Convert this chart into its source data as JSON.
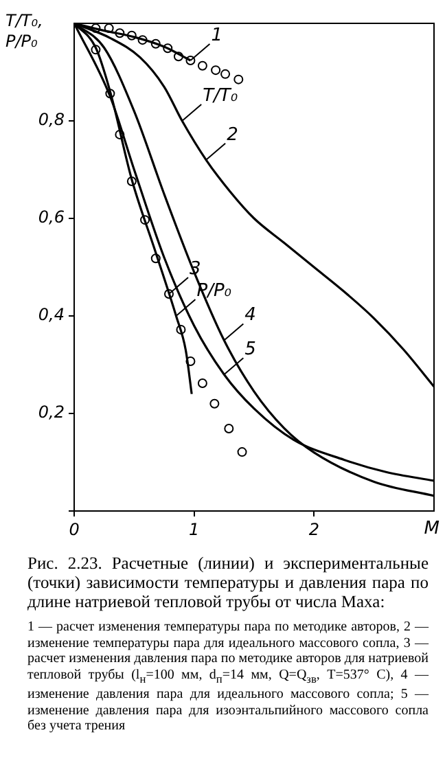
{
  "chart_data": {
    "type": "line",
    "title": "Рис. 2.23. Расчетные (линии) и экспериментальные (точки) зависимости температуры и давления пара по длине натриевой тепловой трубы от числа Маха:",
    "xlabel": "M",
    "ylabel": "T/T₀, P/P₀",
    "xlim": [
      0,
      3
    ],
    "xticks": [
      0,
      1,
      2
    ],
    "ylim": [
      0,
      1
    ],
    "yticks": [
      {
        "value": 0,
        "label": null
      },
      {
        "value": 0.2,
        "label": "0,2"
      },
      {
        "value": 0.4,
        "label": "0,4"
      },
      {
        "value": 0.6,
        "label": "0,6"
      },
      {
        "value": 0.8,
        "label": "0,8"
      }
    ],
    "grid": false,
    "legend": false,
    "line_style": "solid",
    "series": [
      {
        "marker": "none",
        "color": "#000000",
        "x": [
          0,
          0.25,
          0.5,
          0.75,
          0.97
        ],
        "values": [
          1,
          0.985,
          0.972,
          0.952,
          0.924
        ]
      },
      {
        "marker": "none",
        "color": "#000000",
        "x": [
          0,
          0.3,
          0.55,
          0.75,
          0.9,
          1.1,
          1.3,
          1.5,
          1.75,
          2,
          2.25,
          2.5,
          2.75,
          3
        ],
        "values": [
          1,
          0.97,
          0.93,
          0.87,
          0.8,
          0.72,
          0.655,
          0.6,
          0.55,
          0.5,
          0.45,
          0.395,
          0.33,
          0.255
        ]
      },
      {
        "marker": "none",
        "color": "#000000",
        "x": [
          0,
          0.18,
          0.3,
          0.48,
          0.68,
          0.85,
          0.93,
          0.98
        ],
        "values": [
          1,
          0.95,
          0.86,
          0.68,
          0.53,
          0.4,
          0.33,
          0.24
        ]
      },
      {
        "marker": "none",
        "color": "#000000",
        "x": [
          0,
          0.25,
          0.5,
          0.75,
          1,
          1.25,
          1.5,
          1.75,
          2,
          2.5,
          3
        ],
        "values": [
          1,
          0.95,
          0.82,
          0.65,
          0.49,
          0.35,
          0.245,
          0.17,
          0.12,
          0.06,
          0.031
        ]
      },
      {
        "marker": "none",
        "color": "#000000",
        "x": [
          0,
          0.3,
          0.5,
          0.75,
          1,
          1.25,
          1.5,
          1.83,
          2.25,
          2.6,
          3
        ],
        "values": [
          1,
          0.85,
          0.7,
          0.52,
          0.38,
          0.28,
          0.21,
          0.146,
          0.105,
          0.08,
          0.062
        ]
      },
      {
        "type": "scatter",
        "marker": "circle",
        "color": "#000000",
        "x": [
          0.18,
          0.29,
          0.38,
          0.48,
          0.57,
          0.68,
          0.78,
          0.87,
          0.97,
          1.07,
          1.18,
          1.26,
          1.37
        ],
        "values": [
          0.99,
          0.99,
          0.98,
          0.975,
          0.966,
          0.958,
          0.949,
          0.932,
          0.924,
          0.913,
          0.904,
          0.896,
          0.885
        ]
      },
      {
        "type": "scatter",
        "marker": "circle",
        "color": "#000000",
        "x": [
          0.18,
          0.3,
          0.38,
          0.48,
          0.59,
          0.68,
          0.79,
          0.89,
          0.97,
          1.07,
          1.17,
          1.29,
          1.4
        ],
        "values": [
          0.946,
          0.856,
          0.772,
          0.676,
          0.597,
          0.518,
          0.445,
          0.372,
          0.307,
          0.262,
          0.22,
          0.169,
          0.121
        ]
      }
    ],
    "annotations": [
      {
        "text": "1",
        "x": 0.97,
        "y": 0.924
      },
      {
        "text": "T/T₀",
        "x": 0.9,
        "y": 0.8
      },
      {
        "text": "2",
        "x": 1.1,
        "y": 0.72
      },
      {
        "text": "P/P₀",
        "x": 0.85,
        "y": 0.4
      },
      {
        "text": "3",
        "x": 0.79,
        "y": 0.445
      },
      {
        "text": "4",
        "x": 1.25,
        "y": 0.35
      },
      {
        "text": "5",
        "x": 1.25,
        "y": 0.28
      },
      "1 — расчет изменения температуры пара по методике авторов, 2 — изменение температуры пара для идеального массового сопла, 3 — расчет изменения давления пара по методике авторов для натриевой тепловой трубы (l$_{н}$=100 мм, d$_{п}$=14 мм, Q=Q$_{зв}$, T=537° С), 4 — изменение давления пара для идеального массового сопла; 5 — изменение давления пара для изоэнтальпийного массового сопла без учета трения"
    ]
  }
}
